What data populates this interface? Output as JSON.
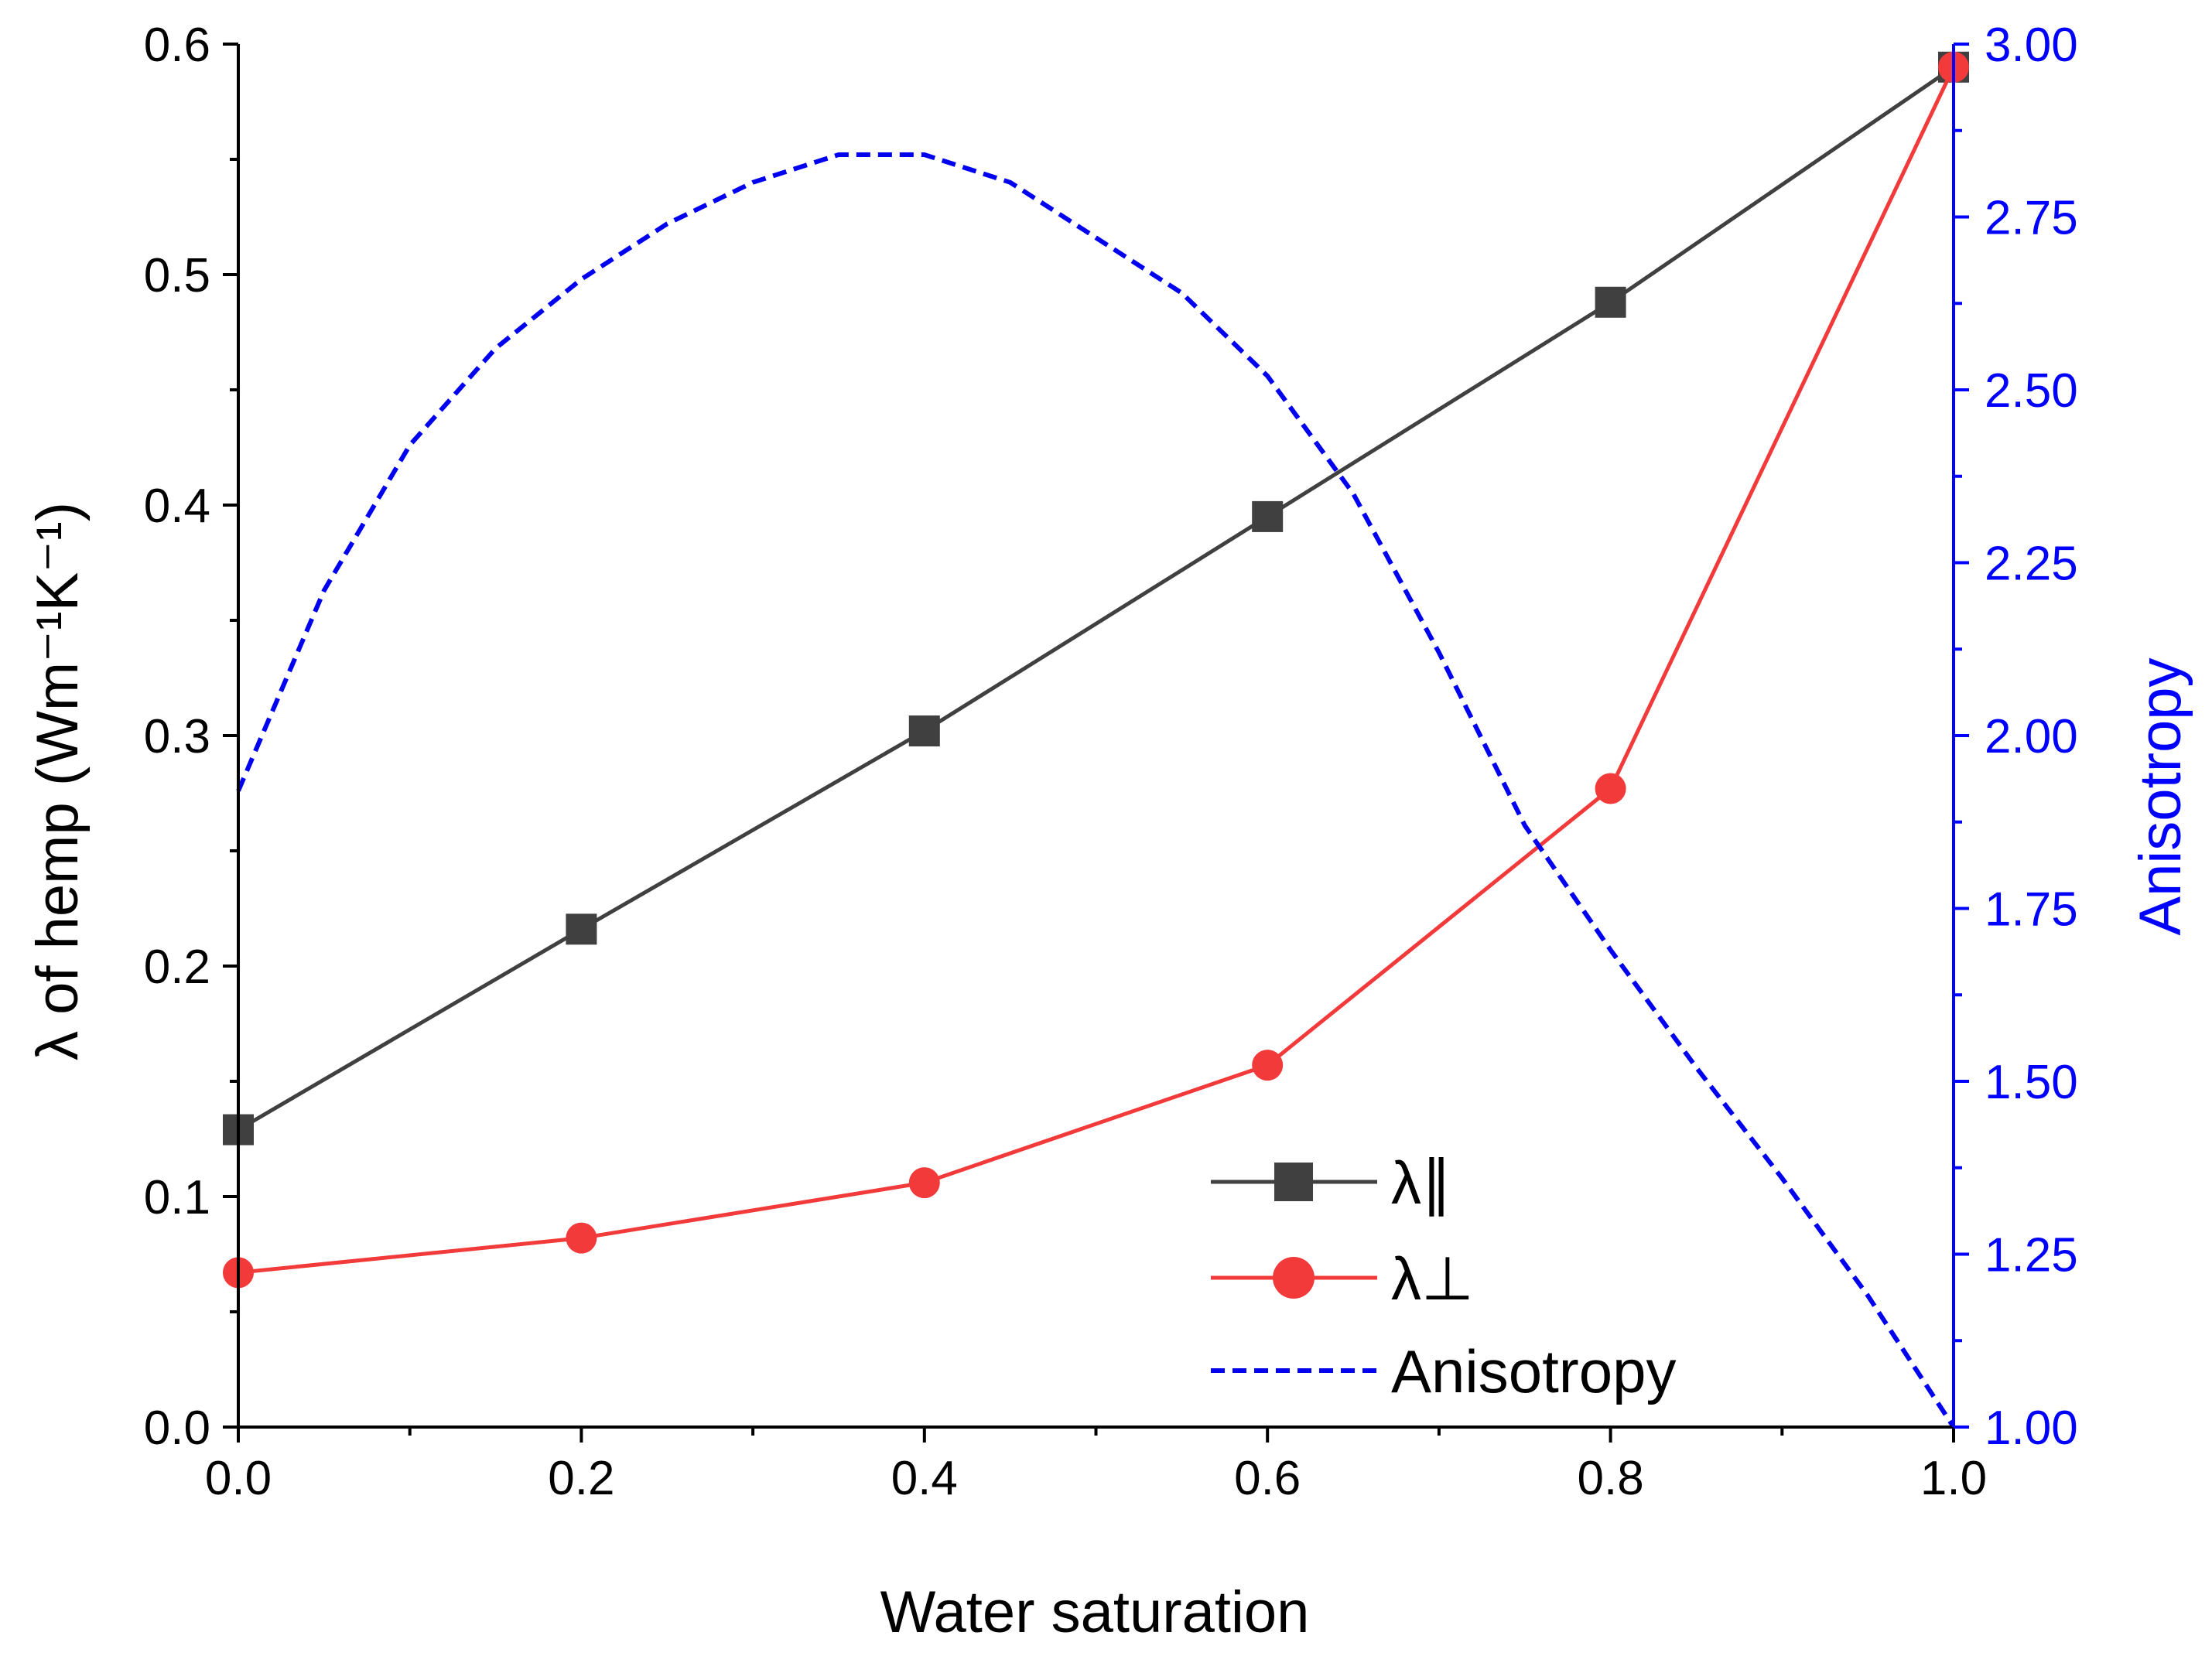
{
  "chart_data": {
    "type": "line",
    "title": "",
    "xlabel": "Water saturation",
    "ylabel": "λ of hemp (Wm⁻¹K⁻¹)",
    "y2label": "Anisotropy",
    "xlim": [
      0.0,
      1.0
    ],
    "ylim": [
      0.0,
      0.6
    ],
    "y2lim": [
      1.0,
      3.0
    ],
    "x_ticks": [
      "0.0",
      "0.2",
      "0.4",
      "0.6",
      "0.8",
      "1.0"
    ],
    "y_ticks": [
      "0.0",
      "0.1",
      "0.2",
      "0.3",
      "0.4",
      "0.5",
      "0.6"
    ],
    "y2_ticks": [
      "1.00",
      "1.25",
      "1.50",
      "1.75",
      "2.00",
      "2.25",
      "2.50",
      "2.75",
      "3.00"
    ],
    "legend_position": "bottom-right",
    "series": [
      {
        "name": "λ∥",
        "legend_label": "λ∥",
        "axis": "left",
        "color": "#404040",
        "marker": "square",
        "line": "solid",
        "x": [
          0.0,
          0.2,
          0.4,
          0.6,
          0.8,
          1.0
        ],
        "values": [
          0.129,
          0.216,
          0.302,
          0.395,
          0.488,
          0.59
        ]
      },
      {
        "name": "λ⊥",
        "legend_label": "λ⊥",
        "axis": "left",
        "color": "#f23a3a",
        "marker": "circle",
        "line": "solid",
        "x": [
          0.0,
          0.2,
          0.4,
          0.6,
          0.8,
          1.0
        ],
        "values": [
          0.067,
          0.082,
          0.106,
          0.157,
          0.277,
          0.59
        ]
      },
      {
        "name": "Anisotropy",
        "legend_label": "Anisotropy",
        "axis": "right",
        "color": "#0000f0",
        "marker": "none",
        "line": "dashed",
        "x": [
          0.0,
          0.05,
          0.1,
          0.15,
          0.2,
          0.25,
          0.3,
          0.35,
          0.4,
          0.45,
          0.5,
          0.55,
          0.6,
          0.65,
          0.7,
          0.75,
          0.8,
          0.85,
          0.9,
          0.95,
          1.0
        ],
        "values": [
          1.92,
          2.21,
          2.42,
          2.56,
          2.66,
          2.74,
          2.8,
          2.84,
          2.84,
          2.8,
          2.72,
          2.64,
          2.52,
          2.35,
          2.12,
          1.87,
          1.69,
          1.52,
          1.36,
          1.19,
          1.0
        ]
      }
    ]
  },
  "colors": {
    "axis": "#000000",
    "right_axis": "#0000ff"
  }
}
